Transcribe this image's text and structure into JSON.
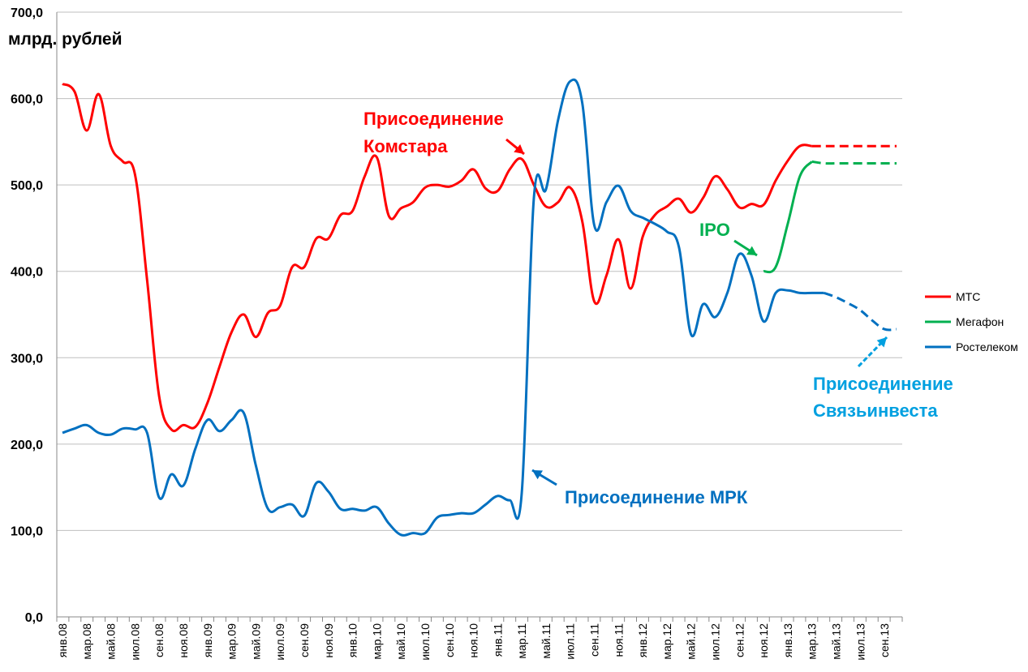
{
  "chart_data": {
    "type": "line",
    "title": "",
    "ylabel": "млрд. рублей",
    "xlabel": "",
    "ylim": [
      0,
      700
    ],
    "yticks": [
      0,
      100,
      200,
      300,
      400,
      500,
      600,
      700
    ],
    "ytick_labels": [
      "0,0",
      "100,0",
      "200,0",
      "300,0",
      "400,0",
      "500,0",
      "600,0",
      "700,0"
    ],
    "grid": true,
    "legend_position": "right",
    "x_tick_labels": [
      "янв.08",
      "мар.08",
      "май.08",
      "июл.08",
      "сен.08",
      "ноя.08",
      "янв.09",
      "мар.09",
      "май.09",
      "июл.09",
      "сен.09",
      "ноя.09",
      "янв.10",
      "мар.10",
      "май.10",
      "июл.10",
      "сен.10",
      "ноя.10",
      "янв.11",
      "мар.11",
      "май.11",
      "июл.11",
      "сен.11",
      "ноя.11",
      "янв.12",
      "мар.12",
      "май.12",
      "июл.12",
      "сен.12",
      "ноя.12",
      "янв.13",
      "мар.13",
      "май.13",
      "июл.13",
      "сен.13"
    ],
    "x": [
      "янв.08",
      "фев.08",
      "мар.08",
      "апр.08",
      "май.08",
      "июн.08",
      "июл.08",
      "авг.08",
      "сен.08",
      "окт.08",
      "ноя.08",
      "дек.08",
      "янв.09",
      "фев.09",
      "мар.09",
      "апр.09",
      "май.09",
      "июн.09",
      "июл.09",
      "авг.09",
      "сен.09",
      "окт.09",
      "ноя.09",
      "дек.09",
      "янв.10",
      "фев.10",
      "мар.10",
      "апр.10",
      "май.10",
      "июн.10",
      "июл.10",
      "авг.10",
      "сен.10",
      "окт.10",
      "ноя.10",
      "дек.10",
      "янв.11",
      "фев.11",
      "мар.11",
      "апр.11",
      "май.11",
      "июн.11",
      "июл.11",
      "авг.11",
      "сен.11",
      "окт.11",
      "ноя.11",
      "дек.11",
      "янв.12",
      "фев.12",
      "мар.12",
      "апр.12",
      "май.12",
      "июн.12",
      "июл.12",
      "авг.12",
      "сен.12",
      "окт.12",
      "ноя.12",
      "дек.12",
      "янв.13",
      "фев.13",
      "мар.13",
      "апр.13",
      "май.13",
      "июн.13",
      "июл.13",
      "авг.13",
      "сен.13",
      "окт.13"
    ],
    "series": [
      {
        "name": "МТС",
        "color": "#ff0000",
        "values": [
          617,
          608,
          563,
          605,
          545,
          527,
          512,
          390,
          255,
          217,
          222,
          220,
          248,
          290,
          330,
          350,
          324,
          352,
          360,
          405,
          405,
          438,
          438,
          465,
          470,
          510,
          532,
          464,
          473,
          480,
          497,
          500,
          498,
          505,
          518,
          496,
          493,
          518,
          530,
          500,
          475,
          480,
          497,
          458,
          365,
          395,
          437,
          380,
          440,
          465,
          475,
          484,
          468,
          485,
          510,
          495,
          474,
          478,
          477,
          505,
          528,
          545,
          545,
          545,
          545,
          545,
          545,
          545,
          545,
          545
        ],
        "projection_from_index": 62
      },
      {
        "name": "Мегафон",
        "color": "#00b050",
        "values": [
          null,
          null,
          null,
          null,
          null,
          null,
          null,
          null,
          null,
          null,
          null,
          null,
          null,
          null,
          null,
          null,
          null,
          null,
          null,
          null,
          null,
          null,
          null,
          null,
          null,
          null,
          null,
          null,
          null,
          null,
          null,
          null,
          null,
          null,
          null,
          null,
          null,
          null,
          null,
          null,
          null,
          null,
          null,
          null,
          null,
          null,
          null,
          null,
          null,
          null,
          null,
          null,
          null,
          null,
          null,
          null,
          null,
          null,
          400,
          405,
          455,
          510,
          527,
          525,
          525,
          525,
          525,
          525,
          525,
          525
        ],
        "projection_from_index": 62
      },
      {
        "name": "Ростелеком",
        "color": "#0070c0",
        "values": [
          213,
          218,
          222,
          213,
          211,
          218,
          217,
          213,
          138,
          165,
          152,
          195,
          228,
          215,
          228,
          236,
          175,
          125,
          127,
          130,
          117,
          155,
          145,
          125,
          125,
          123,
          127,
          108,
          95,
          97,
          97,
          115,
          118,
          120,
          120,
          130,
          140,
          135,
          144,
          485,
          495,
          575,
          620,
          595,
          453,
          480,
          499,
          470,
          462,
          455,
          446,
          428,
          327,
          362,
          347,
          375,
          420,
          395,
          342,
          375,
          378,
          375,
          375,
          375,
          370,
          363,
          355,
          343,
          333,
          333
        ],
        "projection_from_index": 63
      }
    ],
    "annotations": [
      {
        "lines": [
          "Присоединение",
          "Комстара"
        ],
        "color": "#ff0000"
      },
      {
        "lines": [
          "IPO"
        ],
        "color": "#00b050"
      },
      {
        "lines": [
          "Присоединение МРК"
        ],
        "color": "#0070c0"
      },
      {
        "lines": [
          "Присоединение",
          "Связьинвеста"
        ],
        "color": "#00a0e0"
      }
    ]
  }
}
